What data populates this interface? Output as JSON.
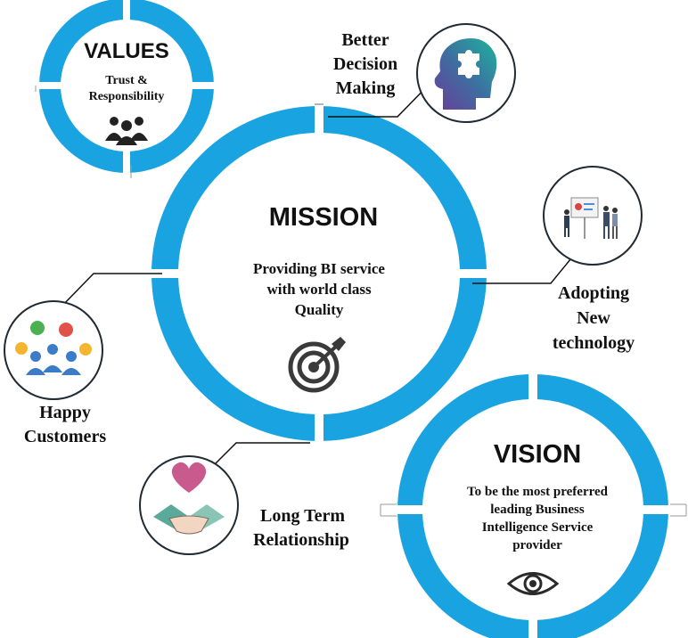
{
  "values": {
    "title": "VALUES",
    "line1": "Trust &",
    "line2": "Responsibility"
  },
  "mission": {
    "title": "MISSION",
    "line1": "Providing BI service",
    "line2": "with world class",
    "line3": "Quality"
  },
  "vision": {
    "title": "VISION",
    "line1": "To be the most preferred",
    "line2": "leading Business",
    "line3": "Intelligence Service",
    "line4": "provider"
  },
  "satellites": {
    "better_decision": {
      "line1": "Better",
      "line2": "Decision",
      "line3": "Making"
    },
    "adopting_tech": {
      "line1": "Adopting",
      "line2": "New",
      "line3": "technology"
    },
    "happy_customers": {
      "line1": "Happy",
      "line2": "Customers"
    },
    "long_term": {
      "line1": "Long Term",
      "line2": "Relationship"
    }
  },
  "icons": [
    "people-group-icon",
    "target-icon",
    "eye-icon",
    "puzzle-head-icon",
    "presentation-icon",
    "customer-feedback-icon",
    "handshake-heart-icon"
  ],
  "colors": {
    "ring": "#1aa3e1",
    "circle_border": "#1f2a33",
    "ink": "#111111",
    "icon_dark": "#3a3a3a",
    "heart": "#c95a8e",
    "hand": "#5aa99a"
  }
}
